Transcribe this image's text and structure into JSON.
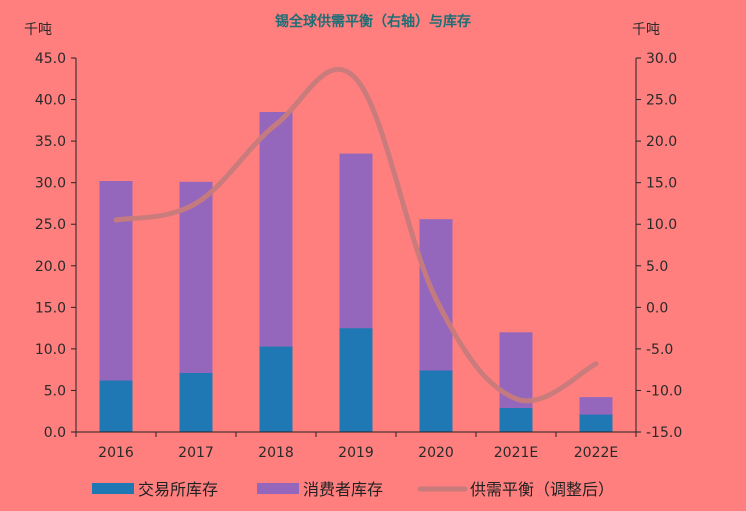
{
  "chart_data": {
    "type": "bar",
    "title": "锡全球供需平衡（右轴）与库存",
    "left_unit": "千吨",
    "right_unit": "千吨",
    "categories": [
      "2016",
      "2017",
      "2018",
      "2019",
      "2020",
      "2021E",
      "2022E"
    ],
    "stacked": true,
    "series": [
      {
        "name": "交易所库存",
        "type": "bar",
        "axis": "left",
        "color": "#1F77B4",
        "values": [
          6.2,
          7.1,
          10.3,
          12.5,
          7.4,
          2.9,
          2.1
        ]
      },
      {
        "name": "消费者库存",
        "type": "bar",
        "axis": "left",
        "color": "#9467BD",
        "values": [
          24.0,
          23.0,
          28.2,
          21.0,
          18.2,
          9.1,
          2.1
        ]
      },
      {
        "name": "供需平衡（调整后）",
        "type": "line",
        "axis": "right",
        "color": "#C77B7B",
        "values": [
          10.5,
          12.5,
          22.0,
          27.5,
          1.0,
          -11.0,
          -6.8
        ]
      }
    ],
    "left_axis": {
      "min": 0,
      "max": 45,
      "step": 5,
      "tick_labels": [
        "0.0",
        "5.0",
        "10.0",
        "15.0",
        "20.0",
        "25.0",
        "30.0",
        "35.0",
        "40.0",
        "45.0"
      ]
    },
    "right_axis": {
      "min": -15,
      "max": 30,
      "step": 5,
      "tick_labels": [
        "-15.0",
        "-10.0",
        "-5.0",
        "0.0",
        "5.0",
        "10.0",
        "15.0",
        "20.0",
        "25.0",
        "30.0"
      ]
    },
    "grid": false,
    "legend_position": "bottom",
    "background": "#FF7F7F"
  }
}
